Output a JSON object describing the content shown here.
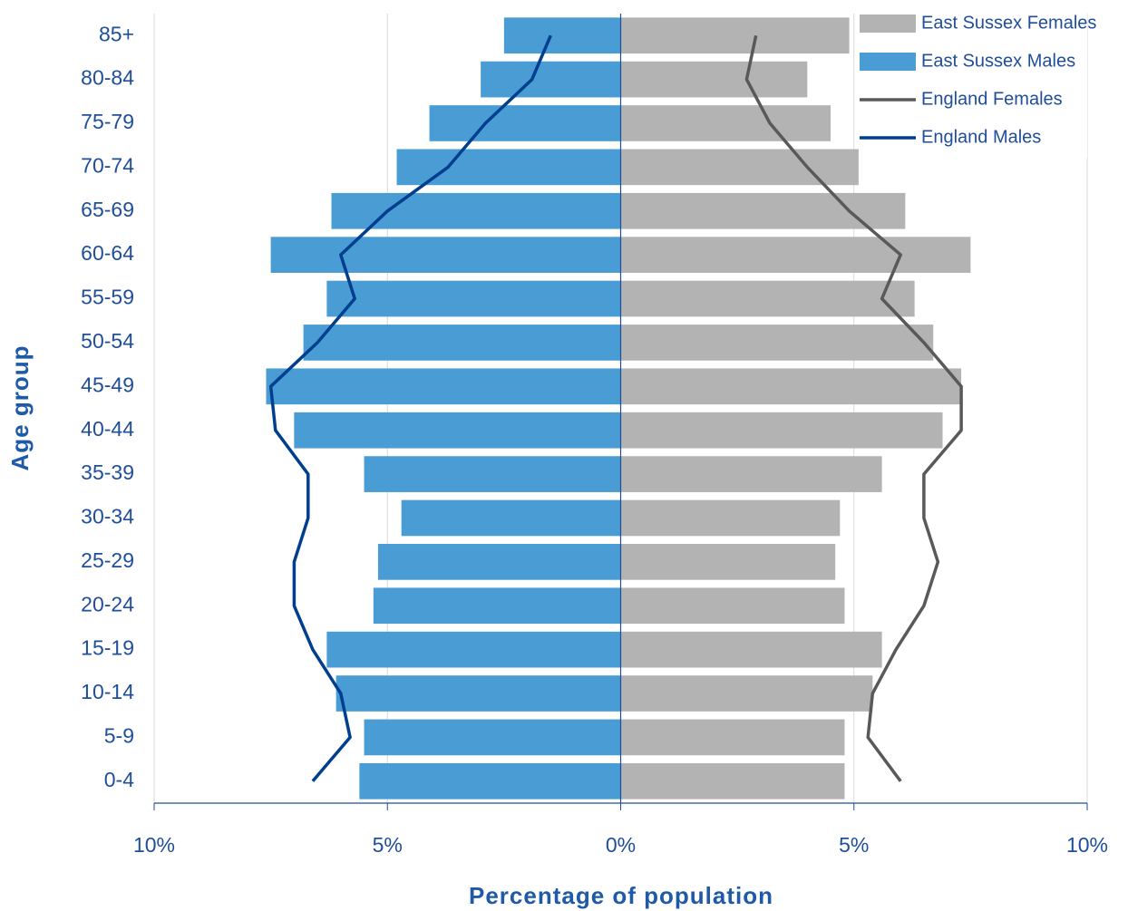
{
  "chart_data": {
    "type": "pyramid",
    "x_label": "Percentage of population",
    "y_label": "Age group",
    "categories": [
      "85+",
      "80-84",
      "75-79",
      "70-74",
      "65-69",
      "60-64",
      "55-59",
      "50-54",
      "45-49",
      "40-44",
      "35-39",
      "30-34",
      "25-29",
      "20-24",
      "15-19",
      "10-14",
      "5-9",
      "0-4"
    ],
    "series": [
      {
        "name": "East Sussex Females",
        "color": "#b3b3b3",
        "style": "bar",
        "values": [
          4.9,
          4.0,
          4.5,
          5.1,
          6.1,
          7.5,
          6.3,
          6.7,
          7.3,
          6.9,
          5.6,
          4.7,
          4.6,
          4.8,
          5.6,
          5.4,
          4.8,
          4.8
        ]
      },
      {
        "name": "East Sussex Males",
        "color": "#4a9cd4",
        "style": "bar",
        "values": [
          -2.5,
          -3.0,
          -4.1,
          -4.8,
          -6.2,
          -7.5,
          -6.3,
          -6.8,
          -7.6,
          -7.0,
          -5.5,
          -4.7,
          -5.2,
          -5.3,
          -6.3,
          -6.1,
          -5.5,
          -5.6
        ]
      },
      {
        "name": "England Females",
        "color": "#595959",
        "style": "line",
        "values": [
          2.9,
          2.7,
          3.2,
          4.0,
          4.9,
          6.0,
          5.6,
          6.5,
          7.3,
          7.3,
          6.5,
          6.5,
          6.8,
          6.5,
          5.9,
          5.4,
          5.3,
          6.0
        ]
      },
      {
        "name": "England Males",
        "color": "#003f8f",
        "style": "line",
        "values": [
          -1.5,
          -1.9,
          -2.9,
          -3.7,
          -5.0,
          -6.0,
          -5.7,
          -6.5,
          -7.5,
          -7.4,
          -6.7,
          -6.7,
          -7.0,
          -7.0,
          -6.6,
          -6.0,
          -5.8,
          -6.6
        ]
      }
    ],
    "xlim": [
      -10,
      10
    ],
    "xticks": [
      {
        "value": -10,
        "label": "10%"
      },
      {
        "value": -5,
        "label": "5%"
      },
      {
        "value": 0,
        "label": "0%"
      },
      {
        "value": 5,
        "label": "5%"
      },
      {
        "value": 10,
        "label": "10%"
      }
    ],
    "grid": true,
    "legend": "top-right"
  }
}
